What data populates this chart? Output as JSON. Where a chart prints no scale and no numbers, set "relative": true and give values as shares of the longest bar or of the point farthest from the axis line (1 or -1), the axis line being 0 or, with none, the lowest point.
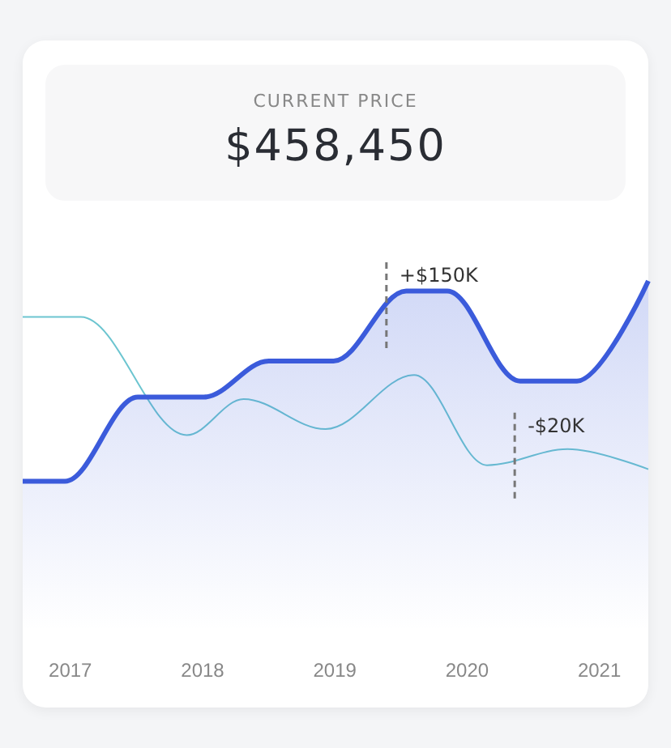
{
  "chart_data": {
    "type": "line",
    "title": "CURRENT PRICE",
    "subtitle": "$458,450",
    "relative": true,
    "x": [
      2016.64,
      2016.96,
      2017.51,
      2018.01,
      2018.5,
      2018.99,
      2019.54,
      2019.85,
      2020.4,
      2020.83,
      2021.37
    ],
    "xlim": [
      2016.64,
      2021.37
    ],
    "xticks": [
      2017,
      2018,
      2019,
      2020,
      2021
    ],
    "series": [
      {
        "type": "area",
        "color": "#3b5bdb",
        "values": [
          0,
          0,
          0.42,
          0.42,
          0.6,
          0.6,
          0.95,
          0.95,
          0.5,
          0.5,
          1
        ]
      },
      {
        "type": "line",
        "color": "#6cc5d0",
        "x": [
          2016.64,
          2017.08,
          2017.88,
          2018.31,
          2018.93,
          2019.6,
          2020.15,
          2020.76,
          2021.37
        ],
        "values": [
          0.82,
          0.82,
          0.23,
          0.41,
          0.26,
          0.53,
          0.08,
          0.16,
          0.06
        ]
      }
    ],
    "annotations": [
      {
        "text": "+$150K",
        "x": 2019.39,
        "y": 0.85
      },
      {
        "text": "-$20K",
        "x": 2020.36,
        "y": 0.1
      }
    ],
    "marker": "none",
    "line_style": "solid",
    "grid": false
  }
}
